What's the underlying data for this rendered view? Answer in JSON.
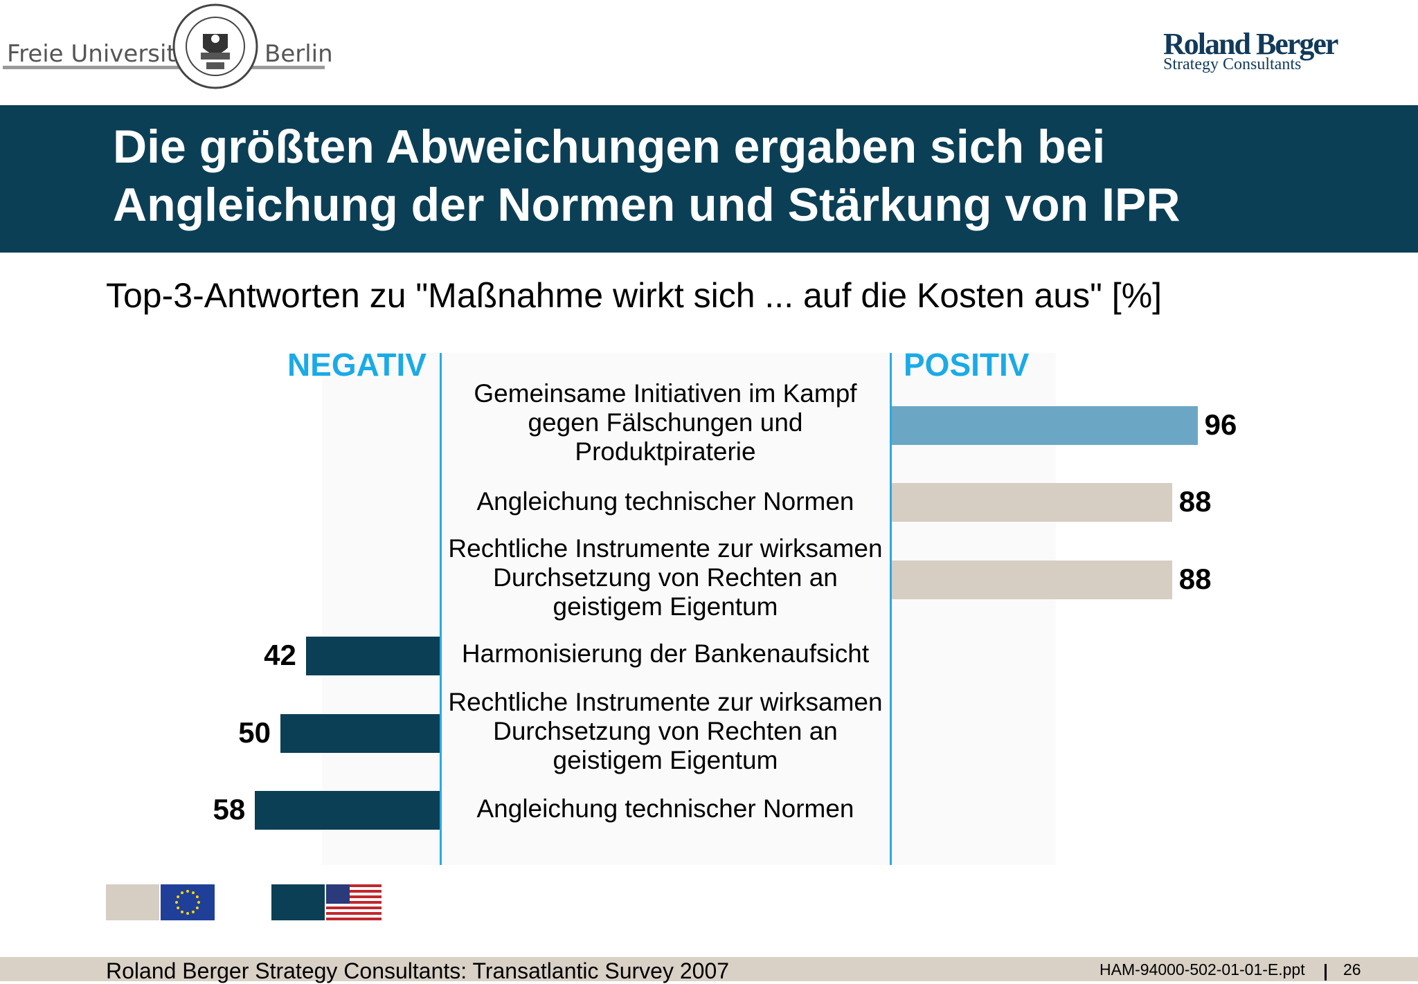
{
  "header": {
    "left_logo": {
      "text_left": "Freie Universität",
      "text_right": "Berlin",
      "seal_text": "VERITAS IUSTITIA LIBERTAS FREIE UNIVERSITÄT BERLIN"
    },
    "right_logo": {
      "name": "Roland Berger",
      "subtitle": "Strategy Consultants"
    }
  },
  "title": "Die größten Abweichungen ergaben sich bei Angleichung der Normen und Stärkung von IPR",
  "subtitle": "Top-3-Antworten zu \"Maßnahme wirkt sich ... auf die Kosten aus\" [%]",
  "colors": {
    "band": "#0b3f56",
    "accent": "#1aaae7",
    "eu_bar": "#d6cdc3",
    "eu_bar_highlight": "#6ba7c4",
    "us_bar": "#0b3f56"
  },
  "chart_data": {
    "type": "bar",
    "orientation": "horizontal-diverging",
    "negative_label": "NEGATIV",
    "positive_label": "POSITIV",
    "series": [
      {
        "name": "EU",
        "side": "positive",
        "color": "#d6cdc3",
        "items": [
          {
            "label": "Gemeinsame Initiativen im Kampf gegen Fälschungen und Produktpiraterie",
            "value": 96,
            "highlight": true
          },
          {
            "label": "Angleichung technischer Normen",
            "value": 88
          },
          {
            "label": "Rechtliche Instrumente zur wirksamen Durchsetzung von Rechten an geistigem Eigentum",
            "value": 88
          }
        ]
      },
      {
        "name": "USA",
        "side": "negative",
        "color": "#0b3f56",
        "items": [
          {
            "label": "Harmonisierung der Bankenaufsicht",
            "value": 42
          },
          {
            "label": "Rechtliche Instrumente zur wirksamen Durchsetzung von Rechten an geistigem Eigentum",
            "value": 50
          },
          {
            "label": "Angleichung technischer Normen",
            "value": 58
          }
        ]
      }
    ],
    "legend": [
      {
        "series": "EU",
        "icon": "eu-flag-icon",
        "color": "#d6cdc3"
      },
      {
        "series": "USA",
        "icon": "us-flag-icon",
        "color": "#0b3f56"
      }
    ]
  },
  "footer": {
    "source": "Roland Berger Strategy Consultants: Transatlantic Survey 2007",
    "file_id": "HAM-94000-502-01-01-E.ppt",
    "page": "26"
  }
}
